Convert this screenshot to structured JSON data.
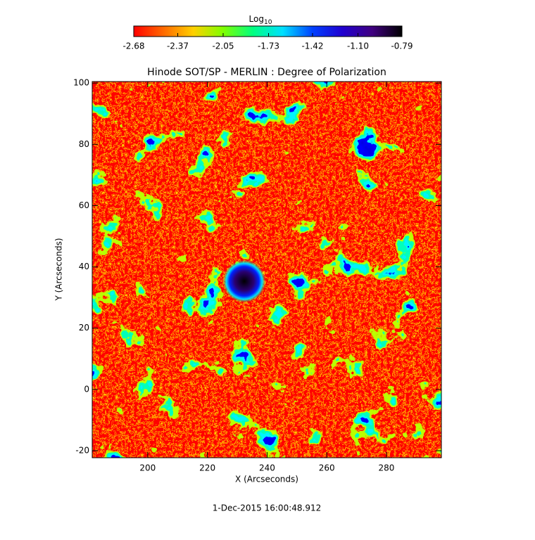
{
  "chart_data": {
    "type": "image",
    "title": "Hinode SOT/SP - MERLIN : Degree of Polarization",
    "xlabel": "X (Arcseconds)",
    "ylabel": "Y (Arcseconds)",
    "footer": "1-Dec-2015 16:00:48.912",
    "xlim": [
      181.4,
      298.4
    ],
    "ylim": [
      -22.3,
      100.5
    ],
    "xticks": [
      200,
      220,
      240,
      260,
      280
    ],
    "yticks": [
      -20,
      0,
      20,
      40,
      60,
      80,
      100
    ],
    "colorbar": {
      "label": "Log",
      "label_subscript": "10",
      "clim": [
        -2.68,
        -0.79
      ],
      "ticks": [
        -2.68,
        -2.37,
        -2.05,
        -1.73,
        -1.42,
        {
          "value": -1.1,
          "label": "-1.10"
        },
        -0.79
      ],
      "colors": [
        "#ff0000",
        "#ff6a00",
        "#ffd000",
        "#80ff00",
        "#00ff80",
        "#00e0ff",
        "#0040ff",
        "#2000d0",
        "#400080",
        "#000000"
      ]
    }
  }
}
